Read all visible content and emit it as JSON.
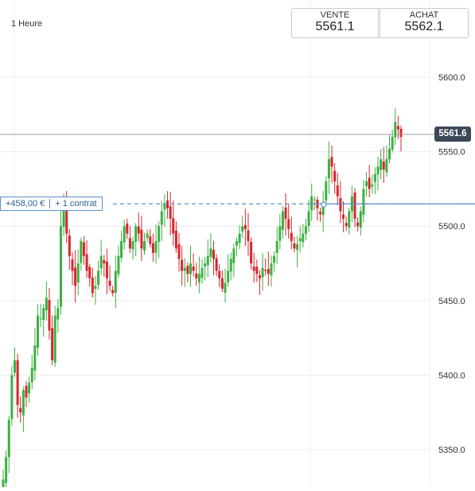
{
  "timeframe": "1 Heure",
  "quotes": {
    "sell": {
      "label": "VENTE",
      "value": "5561.1"
    },
    "buy": {
      "label": "ACHAT",
      "value": "5562.1"
    }
  },
  "current_price_tag": "5561.6",
  "position": {
    "pnl": "+458,00 €",
    "contracts": "+ 1 contrat"
  },
  "colors": {
    "up": "#3cb043",
    "down": "#d8262b",
    "entry_line": "#5b8fc7",
    "price_line": "#9a9a9a",
    "tag_bg": "#3c4858"
  },
  "chart_data": {
    "type": "candlestick",
    "y_axis": {
      "ticks": [
        "5600.0",
        "5550.0",
        "5500.0",
        "5450.0",
        "5400.0",
        "5350.0"
      ],
      "range": [
        5320,
        5620
      ]
    },
    "current_price": 5561.6,
    "entry_price": 5515,
    "close_series": [
      5330,
      5345,
      5370,
      5400,
      5410,
      5380,
      5375,
      5390,
      5385,
      5395,
      5405,
      5420,
      5440,
      5438,
      5445,
      5452,
      5430,
      5410,
      5440,
      5445,
      5500,
      5515,
      5495,
      5480,
      5470,
      5460,
      5475,
      5490,
      5480,
      5470,
      5465,
      5455,
      5460,
      5470,
      5480,
      5475,
      5465,
      5460,
      5455,
      5470,
      5480,
      5490,
      5500,
      5495,
      5485,
      5490,
      5500,
      5495,
      5485,
      5490,
      5495,
      5488,
      5482,
      5490,
      5500,
      5510,
      5515,
      5512,
      5505,
      5495,
      5485,
      5478,
      5470,
      5472,
      5468,
      5475,
      5470,
      5465,
      5468,
      5472,
      5475,
      5480,
      5485,
      5478,
      5470,
      5465,
      5458,
      5462,
      5470,
      5478,
      5485,
      5490,
      5495,
      5500,
      5498,
      5490,
      5475,
      5470,
      5468,
      5465,
      5472,
      5470,
      5468,
      5475,
      5480,
      5490,
      5500,
      5510,
      5505,
      5498,
      5490,
      5485,
      5488,
      5492,
      5495,
      5500,
      5510,
      5520,
      5518,
      5512,
      5508,
      5515,
      5530,
      5545,
      5540,
      5530,
      5520,
      5510,
      5505,
      5500,
      5510,
      5520,
      5505,
      5500,
      5510,
      5525,
      5530,
      5525,
      5528,
      5535,
      5540,
      5545,
      5538,
      5545,
      5552,
      5560,
      5570,
      5565,
      5560
    ]
  }
}
